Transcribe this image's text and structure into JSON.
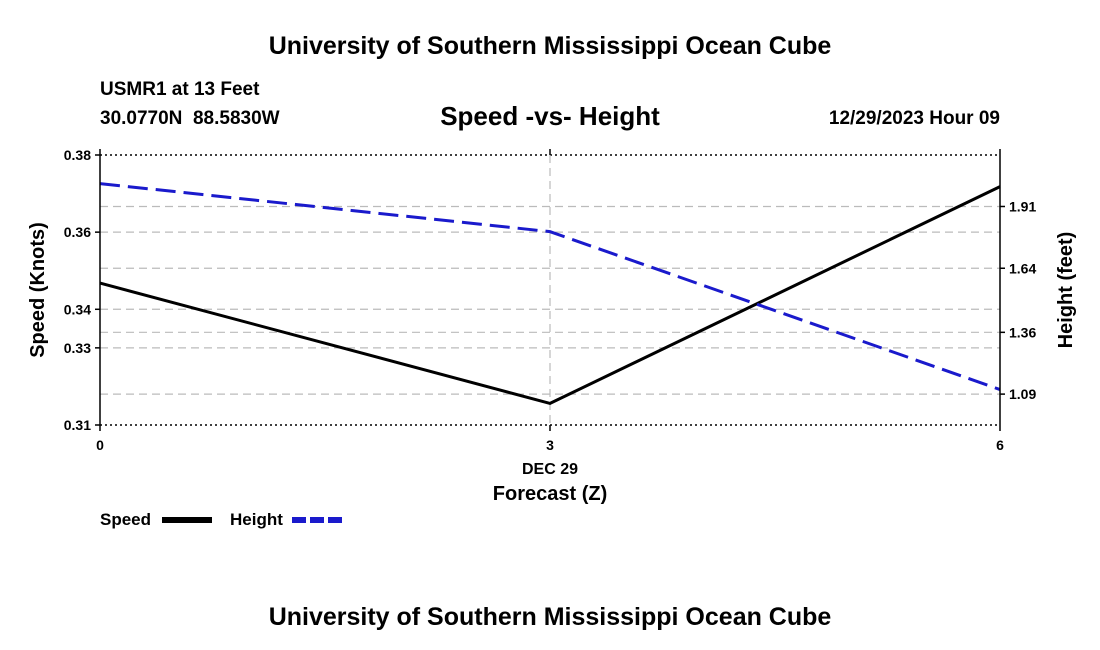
{
  "title": "University of Southern Mississippi Ocean Cube",
  "footer_title": "University of Southern Mississippi Ocean Cube",
  "station": {
    "name": "USMR1 at 13 Feet",
    "coords": "30.0770N  88.5830W"
  },
  "date_label": "12/29/2023 Hour 09",
  "chart_data": {
    "type": "line",
    "title": "Speed -vs- Height",
    "xlabel": "Forecast (Z)",
    "xlabel_date": "DEC 29",
    "ylabel": "Speed (Knots)",
    "y2label": "Height (feet)",
    "x": [
      0,
      3,
      6
    ],
    "xlim": [
      0,
      6
    ],
    "x_ticks": [
      "0",
      "3",
      "6"
    ],
    "ylim": [
      0.31,
      0.38
    ],
    "y_ticks": [
      0.31,
      0.33,
      0.34,
      0.36,
      0.38
    ],
    "y_tick_labels": [
      "0.31",
      "0.33",
      "0.34",
      "0.36",
      "0.38"
    ],
    "y2lim": [
      0.955,
      2.135
    ],
    "y2_ticks": [
      1.09,
      1.36,
      1.64,
      1.91
    ],
    "y2_tick_labels": [
      "1.09",
      "1.36",
      "1.64",
      "1.91"
    ],
    "grid": true,
    "legend_position": "bottom-left",
    "series": [
      {
        "name": "Speed",
        "axis": "left",
        "style": "solid",
        "color": "#000000",
        "values": [
          0.3468,
          0.3156,
          0.3718
        ]
      },
      {
        "name": "Height",
        "axis": "right",
        "style": "dashed",
        "color": "#1a1acc",
        "values": [
          2.01,
          1.8,
          1.11
        ]
      }
    ],
    "legend": [
      "Speed",
      "Height"
    ]
  }
}
